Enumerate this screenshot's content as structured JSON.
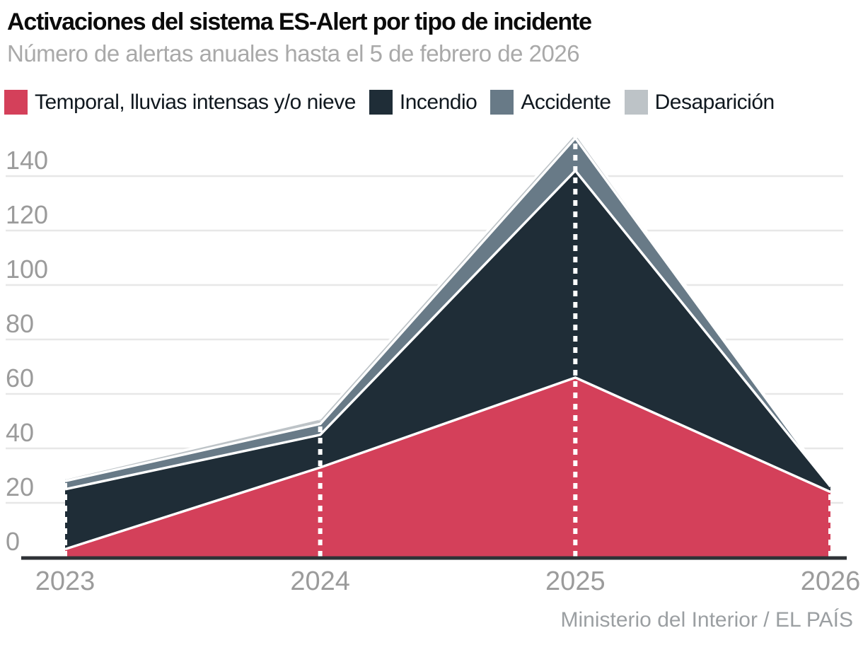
{
  "header": {
    "title": "Activaciones del sistema ES-Alert por tipo de incidente",
    "subtitle": "Número de alertas anuales hasta el 5 de febrero de 2026"
  },
  "footer": {
    "source": "Ministerio del Interior / EL PAÍS"
  },
  "chart_data": {
    "type": "area",
    "stacked": true,
    "title": "Activaciones del sistema ES-Alert por tipo de incidente",
    "subtitle": "Número de alertas anuales hasta el 5 de febrero de 2026",
    "categories": [
      "2023",
      "2024",
      "2025",
      "2026"
    ],
    "series": [
      {
        "name": "Temporal, lluvias intensas y/o nieve",
        "color": "#d4405a",
        "values": [
          3,
          33,
          66,
          24
        ]
      },
      {
        "name": "Incendio",
        "color": "#1f2d37",
        "values": [
          22,
          12,
          76,
          2
        ]
      },
      {
        "name": "Accidente",
        "color": "#687a87",
        "values": [
          3,
          4,
          12,
          0
        ]
      },
      {
        "name": "Desaparición",
        "color": "#bdc3c7",
        "values": [
          1,
          2,
          2,
          0
        ]
      }
    ],
    "totals_by_year": [
      29,
      51,
      156,
      26
    ],
    "xlabel": "",
    "ylabel": "",
    "yticks": [
      0,
      20,
      40,
      60,
      80,
      100,
      120,
      140
    ],
    "ylim": [
      0,
      156
    ],
    "grid": true,
    "legend_position": "top",
    "annotations": "white dotted vertical marker line at each year from baseline to stack top",
    "source": "Ministerio del Interior / EL PAÍS"
  }
}
